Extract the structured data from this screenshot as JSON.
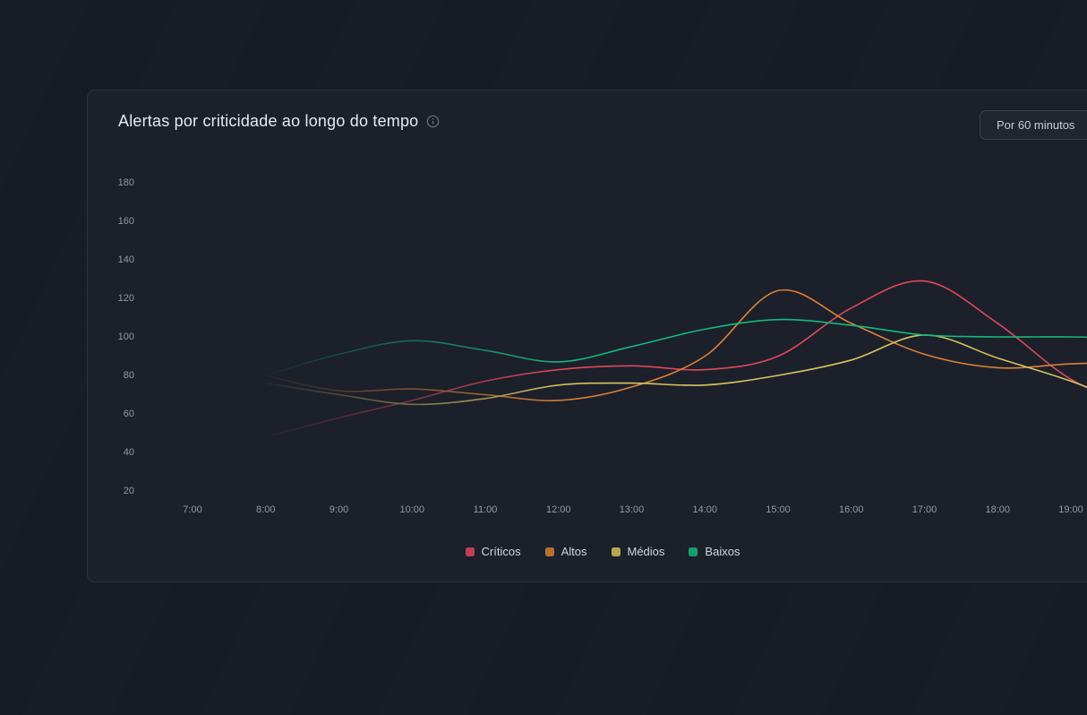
{
  "card": {
    "title": "Alertas por criticidade ao longo do tempo",
    "period_button_label": "Por 60 minutos"
  },
  "chart_data": {
    "type": "line",
    "title": "Alertas por criticidade ao longo do tempo",
    "x_labels": [
      "7:00",
      "8:00",
      "9:00",
      "10:00",
      "11:00",
      "12:00",
      "13:00",
      "14:00",
      "15:00",
      "16:00",
      "17:00",
      "18:00",
      "19:00"
    ],
    "y_ticks": [
      180,
      160,
      140,
      120,
      100,
      80,
      60,
      40,
      20
    ],
    "ylim": [
      20,
      180
    ],
    "grid": false,
    "legend_position": "bottom",
    "fade_in_left": true,
    "series": [
      {
        "name": "Críticos",
        "color": "#e0485a",
        "values": [
          null,
          48,
          58,
          67,
          77,
          83,
          85,
          83,
          90,
          115,
          129,
          107,
          78
        ],
        "beyond_right_edge": 62
      },
      {
        "name": "Altos",
        "color": "#dd8136",
        "values": [
          null,
          80,
          72,
          73,
          70,
          67,
          74,
          90,
          124,
          107,
          91,
          84,
          86
        ],
        "beyond_right_edge": 87
      },
      {
        "name": "Médios",
        "color": "#d8c45e",
        "values": [
          null,
          76,
          70,
          65,
          68,
          75,
          76,
          75,
          80,
          88,
          101,
          89,
          77
        ],
        "beyond_right_edge": 62
      },
      {
        "name": "Baixos",
        "color": "#17b87d",
        "values": [
          null,
          80,
          91,
          98,
          93,
          87,
          95,
          104,
          109,
          106,
          101,
          100,
          100
        ],
        "beyond_right_edge": 99
      }
    ]
  }
}
